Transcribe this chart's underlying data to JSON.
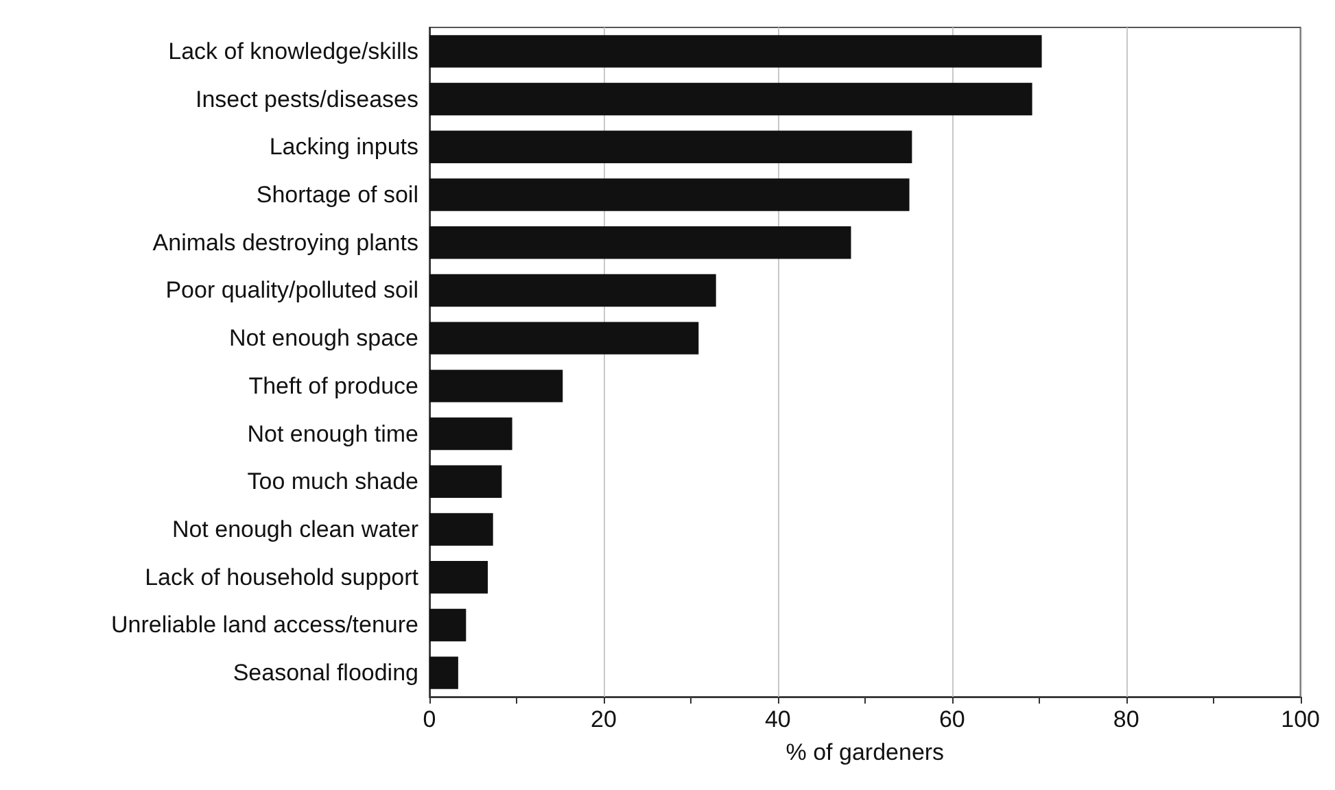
{
  "chart_data": {
    "type": "bar",
    "orientation": "horizontal",
    "xlabel": "% of gardeners",
    "categories": [
      "Lack of knowledge/skills",
      "Insect pests/diseases",
      "Lacking inputs",
      "Shortage of soil",
      "Animals destroying plants",
      "Poor quality/polluted soil",
      "Not enough space",
      "Theft of produce",
      "Not enough time",
      "Too much shade",
      "Not enough clean water",
      "Lack of household support",
      "Unreliable land access/tenure",
      "Seasonal flooding"
    ],
    "values": [
      70.3,
      69.2,
      55.4,
      55.1,
      48.4,
      32.9,
      30.9,
      15.3,
      9.5,
      8.3,
      7.3,
      6.7,
      4.2,
      3.3
    ],
    "color": "#111111",
    "xlim": [
      0,
      100
    ],
    "xticks": [
      0,
      {
        "value": 10,
        "label": null
      },
      20,
      {
        "value": 30,
        "label": null
      },
      40,
      {
        "value": 50,
        "label": null
      },
      60,
      {
        "value": 70,
        "label": null
      },
      80,
      {
        "value": 90,
        "label": null
      },
      100
    ],
    "grid": "x"
  }
}
